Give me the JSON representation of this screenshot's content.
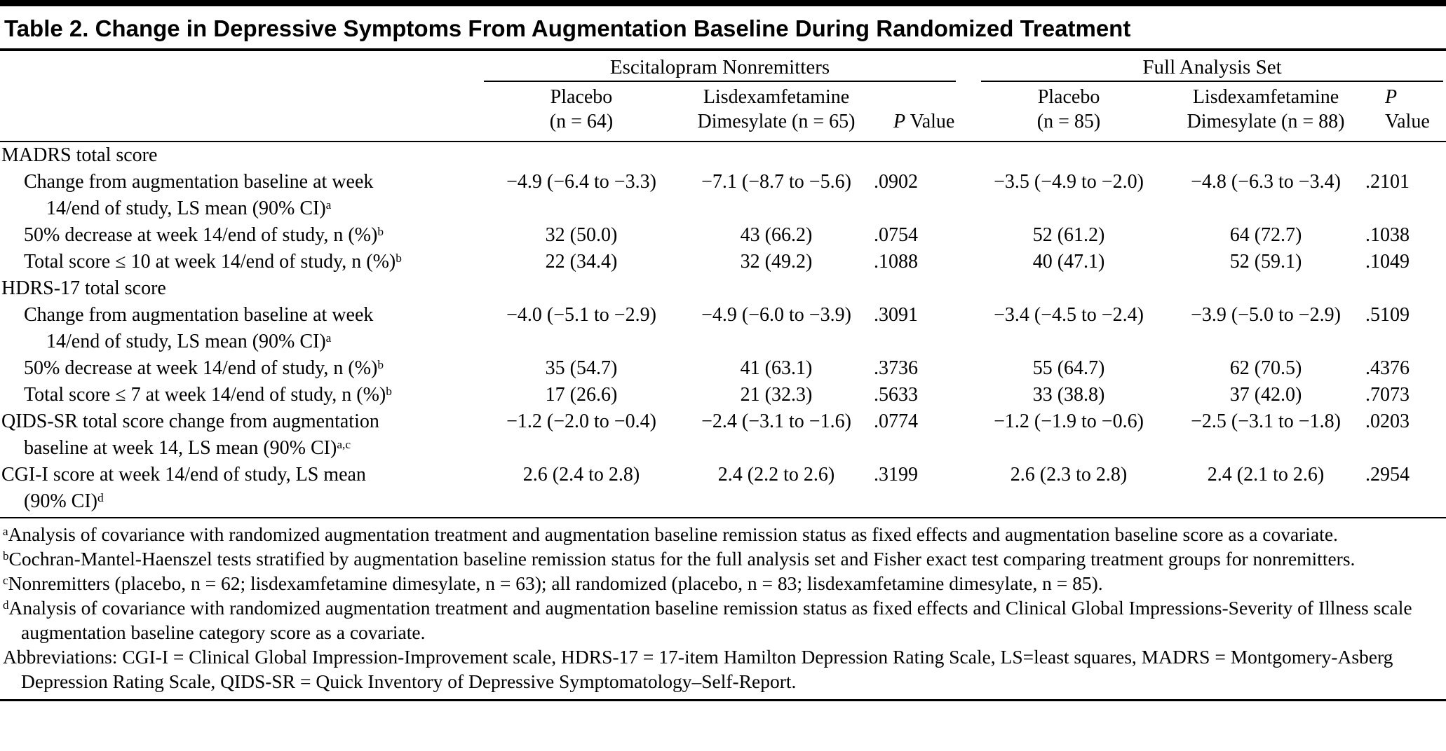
{
  "title": "Table 2. Change in Depressive Symptoms From Augmentation Baseline During Randomized Treatment",
  "header": {
    "group1": "Escitalopram Nonremitters",
    "group2": "Full Analysis Set",
    "sub": {
      "placebo1": "Placebo\n(n = 64)",
      "ldx1": "Lisdexamfetamine\nDimesylate (n = 65)",
      "p_label_italic": "P",
      "p_label_rest": " Value",
      "placebo2": "Placebo\n(n = 85)",
      "ldx2": "Lisdexamfetamine\nDimesylate (n = 88)"
    }
  },
  "rows": [
    {
      "type": "section",
      "label": "MADRS total score"
    },
    {
      "type": "data",
      "label": "Change from augmentation baseline at week\n14/end of study, LS mean (90% CI)",
      "sup": "a",
      "values": [
        "−4.9 (−6.4 to −3.3)",
        "−7.1 (−8.7 to −5.6)",
        ".0902",
        "−3.5 (−4.9 to −2.0)",
        "−4.8 (−6.3 to −3.4)",
        ".2101"
      ]
    },
    {
      "type": "data",
      "label": "50% decrease at week 14/end of study, n (%)",
      "sup": "b",
      "values": [
        "32 (50.0)",
        "43 (66.2)",
        ".0754",
        "52 (61.2)",
        "64 (72.7)",
        ".1038"
      ]
    },
    {
      "type": "data",
      "label": "Total score ≤ 10 at week 14/end of study, n (%)",
      "sup": "b",
      "values": [
        "22 (34.4)",
        "32 (49.2)",
        ".1088",
        "40 (47.1)",
        "52 (59.1)",
        ".1049"
      ]
    },
    {
      "type": "section",
      "label": "HDRS-17 total score"
    },
    {
      "type": "data",
      "label": "Change from augmentation baseline at week\n14/end of study, LS mean (90% CI)",
      "sup": "a",
      "values": [
        "−4.0 (−5.1 to −2.9)",
        "−4.9 (−6.0 to −3.9)",
        ".3091",
        "−3.4 (−4.5 to −2.4)",
        "−3.9 (−5.0 to −2.9)",
        ".5109"
      ]
    },
    {
      "type": "data",
      "label": "50% decrease at week 14/end of study, n (%)",
      "sup": "b",
      "values": [
        "35 (54.7)",
        "41 (63.1)",
        ".3736",
        "55 (64.7)",
        "62 (70.5)",
        ".4376"
      ]
    },
    {
      "type": "data",
      "label": "Total score ≤ 7 at week 14/end of study, n (%)",
      "sup": "b",
      "values": [
        "17 (26.6)",
        "21 (32.3)",
        ".5633",
        "33 (38.8)",
        "37 (42.0)",
        ".7073"
      ]
    },
    {
      "type": "data",
      "label": "QIDS-SR total score change from augmentation\nbaseline at week 14, LS mean (90% CI)",
      "sup": "a,c",
      "values": [
        "−1.2 (−2.0 to −0.4)",
        "−2.4 (−3.1 to −1.6)",
        ".0774",
        "−1.2 (−1.9 to −0.6)",
        "−2.5 (−3.1 to −1.8)",
        ".0203"
      ]
    },
    {
      "type": "data",
      "label": "CGI-I score at week 14/end of study, LS mean\n(90% CI)",
      "sup": "d",
      "values": [
        "2.6 (2.4 to 2.8)",
        "2.4 (2.2 to 2.6)",
        ".3199",
        "2.6 (2.3 to 2.8)",
        "2.4 (2.1 to 2.6)",
        ".2954"
      ]
    }
  ],
  "footnotes": [
    {
      "marker": "a",
      "text": "Analysis of covariance with randomized augmentation treatment and augmentation baseline remission status as fixed effects and augmentation baseline score as a covariate."
    },
    {
      "marker": "b",
      "text": "Cochran-Mantel-Haenszel tests stratified by augmentation baseline remission status for the full analysis set and Fisher exact test comparing treatment groups for nonremitters."
    },
    {
      "marker": "c",
      "text": "Nonremitters (placebo, n = 62; lisdexamfetamine dimesylate, n = 63); all randomized (placebo, n = 83; lisdexamfetamine dimesylate, n = 85)."
    },
    {
      "marker": "d",
      "text": "Analysis of covariance with randomized augmentation treatment and augmentation baseline remission status as fixed effects and Clinical Global Impressions-Severity of Illness scale augmentation baseline category score as a covariate."
    },
    {
      "marker": "",
      "text": "Abbreviations: CGI-I = Clinical Global Impression-Improvement scale, HDRS-17 = 17-item Hamilton Depression Rating Scale, LS=least squares, MADRS = Montgomery-Asberg Depression Rating Scale, QIDS-SR = Quick Inventory of Depressive Symptomatology–Self-Report."
    }
  ]
}
